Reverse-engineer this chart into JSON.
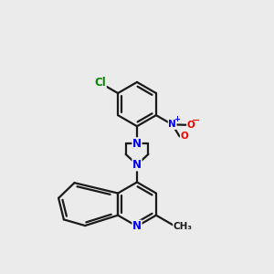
{
  "background_color": "#ebebeb",
  "bond_color": "#1a1a1a",
  "nitrogen_color": "#0000ee",
  "oxygen_color": "#ee0000",
  "chlorine_color": "#008800",
  "bond_width": 1.6,
  "figsize": [
    3.0,
    3.0
  ],
  "dpi": 100,
  "xlim": [
    0,
    10
  ],
  "ylim": [
    0,
    10
  ]
}
